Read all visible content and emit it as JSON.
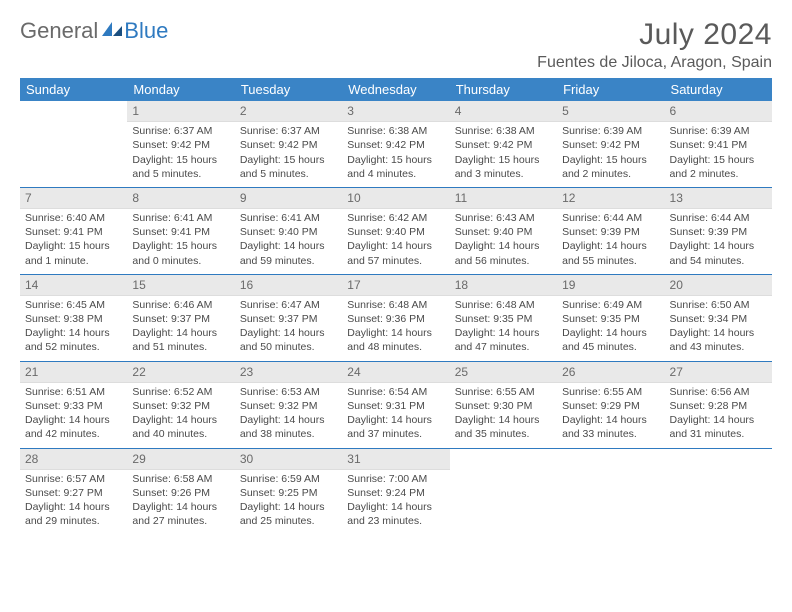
{
  "logo": {
    "word1": "General",
    "word2": "Blue"
  },
  "title": "July 2024",
  "location": "Fuentes de Jiloca, Aragon, Spain",
  "colors": {
    "header_bg": "#3a84c6",
    "header_text": "#ffffff",
    "daynum_bg": "#e9e9e9",
    "row_border": "#2f7ac0",
    "logo_gray": "#6a6a6a",
    "logo_blue": "#2f7ac0",
    "text": "#4a4a4a"
  },
  "weekdays": [
    "Sunday",
    "Monday",
    "Tuesday",
    "Wednesday",
    "Thursday",
    "Friday",
    "Saturday"
  ],
  "weeks": [
    [
      null,
      {
        "n": "1",
        "sr": "Sunrise: 6:37 AM",
        "ss": "Sunset: 9:42 PM",
        "dl1": "Daylight: 15 hours",
        "dl2": "and 5 minutes."
      },
      {
        "n": "2",
        "sr": "Sunrise: 6:37 AM",
        "ss": "Sunset: 9:42 PM",
        "dl1": "Daylight: 15 hours",
        "dl2": "and 5 minutes."
      },
      {
        "n": "3",
        "sr": "Sunrise: 6:38 AM",
        "ss": "Sunset: 9:42 PM",
        "dl1": "Daylight: 15 hours",
        "dl2": "and 4 minutes."
      },
      {
        "n": "4",
        "sr": "Sunrise: 6:38 AM",
        "ss": "Sunset: 9:42 PM",
        "dl1": "Daylight: 15 hours",
        "dl2": "and 3 minutes."
      },
      {
        "n": "5",
        "sr": "Sunrise: 6:39 AM",
        "ss": "Sunset: 9:42 PM",
        "dl1": "Daylight: 15 hours",
        "dl2": "and 2 minutes."
      },
      {
        "n": "6",
        "sr": "Sunrise: 6:39 AM",
        "ss": "Sunset: 9:41 PM",
        "dl1": "Daylight: 15 hours",
        "dl2": "and 2 minutes."
      }
    ],
    [
      {
        "n": "7",
        "sr": "Sunrise: 6:40 AM",
        "ss": "Sunset: 9:41 PM",
        "dl1": "Daylight: 15 hours",
        "dl2": "and 1 minute."
      },
      {
        "n": "8",
        "sr": "Sunrise: 6:41 AM",
        "ss": "Sunset: 9:41 PM",
        "dl1": "Daylight: 15 hours",
        "dl2": "and 0 minutes."
      },
      {
        "n": "9",
        "sr": "Sunrise: 6:41 AM",
        "ss": "Sunset: 9:40 PM",
        "dl1": "Daylight: 14 hours",
        "dl2": "and 59 minutes."
      },
      {
        "n": "10",
        "sr": "Sunrise: 6:42 AM",
        "ss": "Sunset: 9:40 PM",
        "dl1": "Daylight: 14 hours",
        "dl2": "and 57 minutes."
      },
      {
        "n": "11",
        "sr": "Sunrise: 6:43 AM",
        "ss": "Sunset: 9:40 PM",
        "dl1": "Daylight: 14 hours",
        "dl2": "and 56 minutes."
      },
      {
        "n": "12",
        "sr": "Sunrise: 6:44 AM",
        "ss": "Sunset: 9:39 PM",
        "dl1": "Daylight: 14 hours",
        "dl2": "and 55 minutes."
      },
      {
        "n": "13",
        "sr": "Sunrise: 6:44 AM",
        "ss": "Sunset: 9:39 PM",
        "dl1": "Daylight: 14 hours",
        "dl2": "and 54 minutes."
      }
    ],
    [
      {
        "n": "14",
        "sr": "Sunrise: 6:45 AM",
        "ss": "Sunset: 9:38 PM",
        "dl1": "Daylight: 14 hours",
        "dl2": "and 52 minutes."
      },
      {
        "n": "15",
        "sr": "Sunrise: 6:46 AM",
        "ss": "Sunset: 9:37 PM",
        "dl1": "Daylight: 14 hours",
        "dl2": "and 51 minutes."
      },
      {
        "n": "16",
        "sr": "Sunrise: 6:47 AM",
        "ss": "Sunset: 9:37 PM",
        "dl1": "Daylight: 14 hours",
        "dl2": "and 50 minutes."
      },
      {
        "n": "17",
        "sr": "Sunrise: 6:48 AM",
        "ss": "Sunset: 9:36 PM",
        "dl1": "Daylight: 14 hours",
        "dl2": "and 48 minutes."
      },
      {
        "n": "18",
        "sr": "Sunrise: 6:48 AM",
        "ss": "Sunset: 9:35 PM",
        "dl1": "Daylight: 14 hours",
        "dl2": "and 47 minutes."
      },
      {
        "n": "19",
        "sr": "Sunrise: 6:49 AM",
        "ss": "Sunset: 9:35 PM",
        "dl1": "Daylight: 14 hours",
        "dl2": "and 45 minutes."
      },
      {
        "n": "20",
        "sr": "Sunrise: 6:50 AM",
        "ss": "Sunset: 9:34 PM",
        "dl1": "Daylight: 14 hours",
        "dl2": "and 43 minutes."
      }
    ],
    [
      {
        "n": "21",
        "sr": "Sunrise: 6:51 AM",
        "ss": "Sunset: 9:33 PM",
        "dl1": "Daylight: 14 hours",
        "dl2": "and 42 minutes."
      },
      {
        "n": "22",
        "sr": "Sunrise: 6:52 AM",
        "ss": "Sunset: 9:32 PM",
        "dl1": "Daylight: 14 hours",
        "dl2": "and 40 minutes."
      },
      {
        "n": "23",
        "sr": "Sunrise: 6:53 AM",
        "ss": "Sunset: 9:32 PM",
        "dl1": "Daylight: 14 hours",
        "dl2": "and 38 minutes."
      },
      {
        "n": "24",
        "sr": "Sunrise: 6:54 AM",
        "ss": "Sunset: 9:31 PM",
        "dl1": "Daylight: 14 hours",
        "dl2": "and 37 minutes."
      },
      {
        "n": "25",
        "sr": "Sunrise: 6:55 AM",
        "ss": "Sunset: 9:30 PM",
        "dl1": "Daylight: 14 hours",
        "dl2": "and 35 minutes."
      },
      {
        "n": "26",
        "sr": "Sunrise: 6:55 AM",
        "ss": "Sunset: 9:29 PM",
        "dl1": "Daylight: 14 hours",
        "dl2": "and 33 minutes."
      },
      {
        "n": "27",
        "sr": "Sunrise: 6:56 AM",
        "ss": "Sunset: 9:28 PM",
        "dl1": "Daylight: 14 hours",
        "dl2": "and 31 minutes."
      }
    ],
    [
      {
        "n": "28",
        "sr": "Sunrise: 6:57 AM",
        "ss": "Sunset: 9:27 PM",
        "dl1": "Daylight: 14 hours",
        "dl2": "and 29 minutes."
      },
      {
        "n": "29",
        "sr": "Sunrise: 6:58 AM",
        "ss": "Sunset: 9:26 PM",
        "dl1": "Daylight: 14 hours",
        "dl2": "and 27 minutes."
      },
      {
        "n": "30",
        "sr": "Sunrise: 6:59 AM",
        "ss": "Sunset: 9:25 PM",
        "dl1": "Daylight: 14 hours",
        "dl2": "and 25 minutes."
      },
      {
        "n": "31",
        "sr": "Sunrise: 7:00 AM",
        "ss": "Sunset: 9:24 PM",
        "dl1": "Daylight: 14 hours",
        "dl2": "and 23 minutes."
      },
      null,
      null,
      null
    ]
  ]
}
